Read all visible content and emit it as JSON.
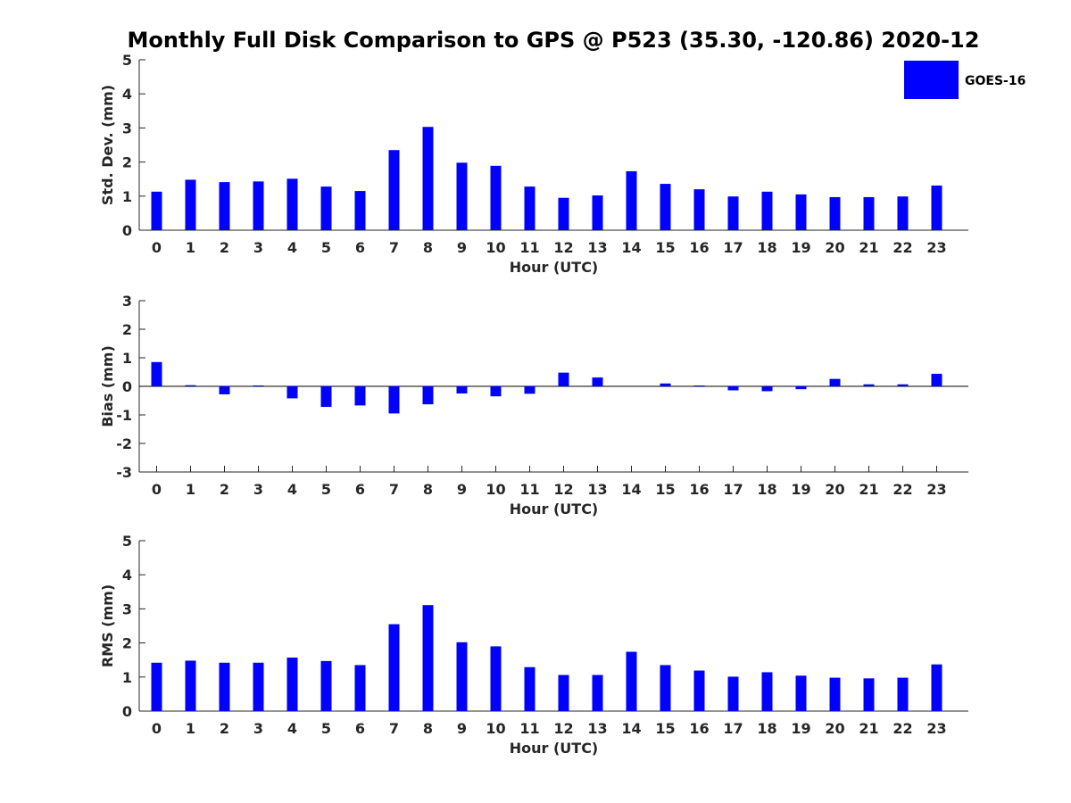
{
  "title": "Monthly Full Disk Comparison to GPS @ P523 (35.30, -120.86) 2020-12",
  "colors": {
    "bar": "#0000ff",
    "axis": "#262626",
    "background": "#ffffff"
  },
  "legend": {
    "label": "GOES-16",
    "placement": "top-right"
  },
  "chart_data": [
    {
      "type": "bar",
      "name": "std-dev",
      "xlabel": "Hour (UTC)",
      "ylabel": "Std. Dev. (mm)",
      "ylim": [
        0,
        5
      ],
      "yticks": [
        0,
        1,
        2,
        3,
        4,
        5
      ],
      "categories": [
        "0",
        "1",
        "2",
        "3",
        "4",
        "5",
        "6",
        "7",
        "8",
        "9",
        "10",
        "11",
        "12",
        "13",
        "14",
        "15",
        "16",
        "17",
        "18",
        "19",
        "20",
        "21",
        "22",
        "23"
      ],
      "series": [
        {
          "name": "GOES-16",
          "values": [
            1.13,
            1.48,
            1.41,
            1.43,
            1.51,
            1.28,
            1.15,
            2.35,
            3.03,
            1.98,
            1.89,
            1.28,
            0.95,
            1.02,
            1.73,
            1.36,
            1.2,
            0.99,
            1.13,
            1.05,
            0.97,
            0.97,
            0.99,
            1.31
          ]
        }
      ]
    },
    {
      "type": "bar",
      "name": "bias",
      "xlabel": "Hour (UTC)",
      "ylabel": "Bias (mm)",
      "ylim": [
        -3,
        3
      ],
      "yticks": [
        -3,
        -2,
        -1,
        0,
        1,
        2,
        3
      ],
      "zero_line": true,
      "categories": [
        "0",
        "1",
        "2",
        "3",
        "4",
        "5",
        "6",
        "7",
        "8",
        "9",
        "10",
        "11",
        "12",
        "13",
        "14",
        "15",
        "16",
        "17",
        "18",
        "19",
        "20",
        "21",
        "22",
        "23"
      ],
      "series": [
        {
          "name": "GOES-16",
          "values": [
            0.85,
            0.04,
            -0.28,
            0.03,
            -0.42,
            -0.72,
            -0.67,
            -0.95,
            -0.63,
            -0.25,
            -0.35,
            -0.26,
            0.48,
            0.31,
            0.0,
            0.1,
            0.03,
            -0.14,
            -0.17,
            -0.1,
            0.26,
            0.07,
            0.07,
            0.44
          ]
        }
      ]
    },
    {
      "type": "bar",
      "name": "rms",
      "xlabel": "Hour (UTC)",
      "ylabel": "RMS (mm)",
      "ylim": [
        0,
        5
      ],
      "yticks": [
        0,
        1,
        2,
        3,
        4,
        5
      ],
      "categories": [
        "0",
        "1",
        "2",
        "3",
        "4",
        "5",
        "6",
        "7",
        "8",
        "9",
        "10",
        "11",
        "12",
        "13",
        "14",
        "15",
        "16",
        "17",
        "18",
        "19",
        "20",
        "21",
        "22",
        "23"
      ],
      "series": [
        {
          "name": "GOES-16",
          "values": [
            1.42,
            1.48,
            1.42,
            1.42,
            1.57,
            1.47,
            1.35,
            2.55,
            3.11,
            2.02,
            1.9,
            1.29,
            1.06,
            1.06,
            1.74,
            1.35,
            1.19,
            1.01,
            1.14,
            1.04,
            0.98,
            0.96,
            0.98,
            1.37
          ]
        }
      ]
    }
  ]
}
